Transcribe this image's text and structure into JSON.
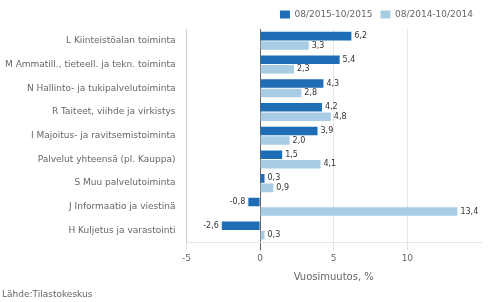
{
  "chart_data": {
    "type": "bar",
    "orientation": "horizontal",
    "categories": [
      "L Kiinteistöalan toiminta",
      "M Ammatill., tieteell. ja tekn. toiminta",
      "N Hallinto- ja tukipalvelutoiminta",
      "R Taiteet, viihde ja virkistys",
      "I Majoitus- ja ravitsemistoiminta",
      "Palvelut yhteensä (pl. Kauppa)",
      "S Muu palvelutoiminta",
      "J Informaatio ja viestinä",
      "H Kuljetus ja varastointi"
    ],
    "series": [
      {
        "name": "08/2015-10/2015",
        "color": "#1f6db5",
        "values": [
          6.2,
          5.4,
          4.3,
          4.2,
          3.9,
          1.5,
          0.3,
          -0.8,
          -2.6
        ],
        "value_labels": [
          "6,2",
          "5,4",
          "4,3",
          "4,2",
          "3,9",
          "1,5",
          "0,3",
          "-0,8",
          "-2,6"
        ]
      },
      {
        "name": "08/2014-10/2014",
        "color": "#a8cce4",
        "values": [
          3.3,
          2.3,
          2.8,
          4.8,
          2.0,
          4.1,
          0.9,
          13.4,
          0.3
        ],
        "value_labels": [
          "3,3",
          "2,3",
          "2,8",
          "4,8",
          "2,0",
          "4,1",
          "0,9",
          "13,4",
          "0,3"
        ]
      }
    ],
    "xlabel": "Vuosimuutos, %",
    "annotations": [
      "Lähde:Tilastokeskus"
    ],
    "xlim": [
      -5,
      15
    ],
    "xticks": [
      -5,
      0,
      5,
      10
    ],
    "grid": "x",
    "legend": "upper right",
    "data_labels": true
  }
}
